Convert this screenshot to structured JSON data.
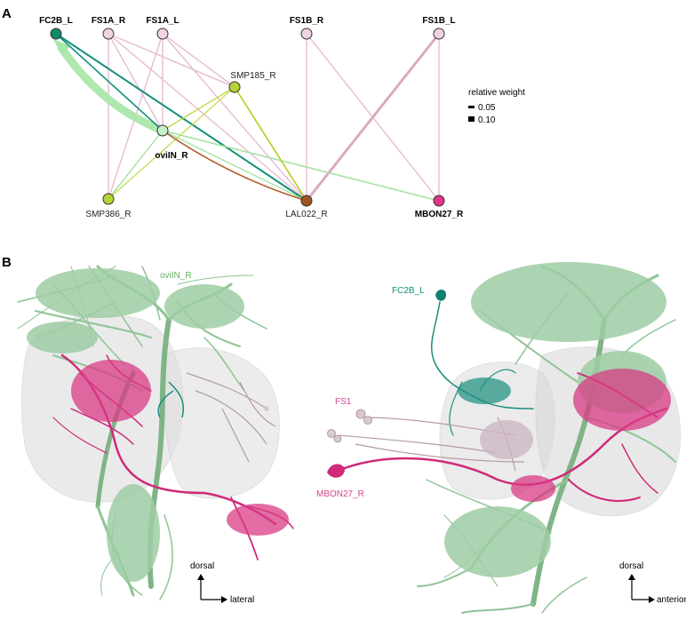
{
  "panel_a": {
    "letter": "A",
    "nodes": {
      "fc2b_l": {
        "label": "FC2B_L",
        "color": "#0f8a6c"
      },
      "fs1a_r": {
        "label": "FS1A_R",
        "color": "#efd3e3"
      },
      "fs1a_l": {
        "label": "FS1A_L",
        "color": "#efd3e3"
      },
      "fs1b_r": {
        "label": "FS1B_R",
        "color": "#efd3e3"
      },
      "fs1b_l": {
        "label": "FS1B_L",
        "color": "#efd3e3"
      },
      "smp185_r": {
        "label": "SMP185_R",
        "color": "#b5d336"
      },
      "ovlln_r": {
        "label": "oviIN_R",
        "color": "#c9efc9"
      },
      "smp386_r": {
        "label": "SMP386_R",
        "color": "#b5d336"
      },
      "lal022_r": {
        "label": "LAL022_R",
        "color": "#a0541e"
      },
      "mbon27_r": {
        "label": "MBON27_R",
        "color": "#e0358a"
      }
    },
    "legend": {
      "title": "relative weight",
      "items": [
        "0.05",
        "0.10"
      ]
    },
    "edge_colors": {
      "fs1": "#e9b9cf",
      "fc2b": "#13907a",
      "ovlln": "#b4e8b4",
      "smp": "#c0d640",
      "lal": "#b25a22"
    }
  },
  "panel_b": {
    "letter": "B",
    "labels": {
      "ovlln": "oviIN_R",
      "fc2b": "FC2B_L",
      "fs1": "FS1",
      "mbon27": "MBON27_R"
    },
    "label_colors": {
      "ovlln": "#5fb35f",
      "fc2b": "#13907a",
      "fs1": "#d2458c",
      "mbon27": "#d2458c"
    },
    "left_axes": {
      "up": "dorsal",
      "right": "lateral"
    },
    "right_axes": {
      "up": "dorsal",
      "right": "anterior"
    },
    "colors": {
      "ovlln": "#8fc495",
      "ovlln_dark": "#5e9a68",
      "mbon": "#d02a79",
      "fc2b": "#198f7e",
      "fs1": "#b59aa7",
      "neuropil": "#d8d8d8"
    }
  }
}
